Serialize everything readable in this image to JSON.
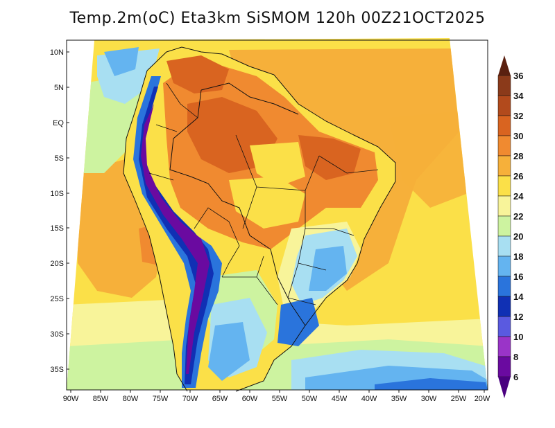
{
  "title": "Temp.2m(oC) Eta3km SiSMOM 120h 00Z21OCT2025",
  "lat_labels": [
    "10N",
    "5N",
    "EQ",
    "5S",
    "10S",
    "15S",
    "20S",
    "25S",
    "30S",
    "35S"
  ],
  "lon_labels": [
    "90W",
    "85W",
    "80W",
    "75W",
    "70W",
    "65W",
    "60W",
    "55W",
    "50W",
    "45W",
    "40W",
    "35W",
    "30W",
    "25W",
    "20W"
  ],
  "colorbar": {
    "labels": [
      "36",
      "34",
      "32",
      "30",
      "28",
      "26",
      "24",
      "22",
      "20",
      "18",
      "16",
      "14",
      "12",
      "10",
      "8",
      "6"
    ],
    "colors": [
      "#6b2a14",
      "#8b3a1a",
      "#b24a1c",
      "#d96420",
      "#f08a30",
      "#f6b03a",
      "#fbe048",
      "#f8f49a",
      "#cdf3a0",
      "#a8dff2",
      "#64b4f0",
      "#2a74dc",
      "#1030b4",
      "#5a5ae0",
      "#9a34c8",
      "#6a0aa0"
    ],
    "tip_top": "#5a2010",
    "tip_bottom": "#4a0080"
  },
  "palette": {
    "ocean_warm": "#f6b03a",
    "ocean_yellow": "#fbe048",
    "pale": "#f8f49a",
    "green": "#cdf3a0",
    "cyan": "#a8dff2",
    "blue": "#64b4f0",
    "deep_blue": "#2a74dc",
    "navy": "#1030b4",
    "purple": "#6a0aa0",
    "orange": "#f08a30",
    "dark_orange": "#d96420"
  }
}
